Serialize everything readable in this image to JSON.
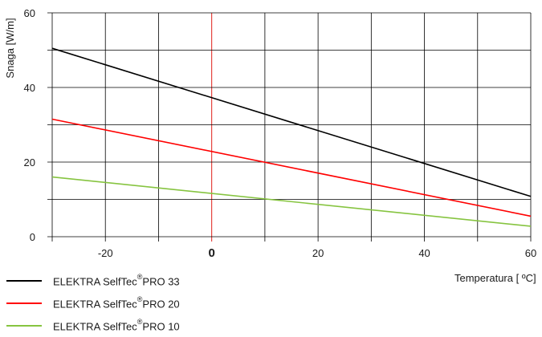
{
  "chart_data": {
    "type": "line",
    "xlabel": "Temperatura [ ºC]",
    "ylabel": "Snaga [W/m]",
    "xlim": [
      -30,
      60
    ],
    "ylim": [
      0,
      60
    ],
    "x_ticks": [
      -20,
      0,
      20,
      40,
      60
    ],
    "y_ticks": [
      0,
      20,
      40,
      60
    ],
    "x_highlight": 0,
    "grid": true,
    "legend_position": "bottom-left",
    "series": [
      {
        "name": "ELEKTRA SelfTec ®PRO 33",
        "color": "#000000",
        "x": [
          -30,
          60
        ],
        "y": [
          50.5,
          10.8
        ]
      },
      {
        "name": "ELEKTRA SelfTec ®PRO 20",
        "color": "#ff0000",
        "x": [
          -30,
          60
        ],
        "y": [
          31.5,
          5.5
        ]
      },
      {
        "name": "ELEKTRA SelfTec ®PRO 10",
        "color": "#86c440",
        "x": [
          -30,
          60
        ],
        "y": [
          16.0,
          2.8
        ]
      }
    ]
  },
  "legend": {
    "items": [
      {
        "prefix": "ELEKTRA SelfTec",
        "mark": "®",
        "suffix": "PRO 33",
        "color": "#000000"
      },
      {
        "prefix": "ELEKTRA SelfTec",
        "mark": "®",
        "suffix": "PRO 20",
        "color": "#ff0000"
      },
      {
        "prefix": "ELEKTRA SelfTec",
        "mark": "®",
        "suffix": "PRO 10",
        "color": "#86c440"
      }
    ]
  }
}
